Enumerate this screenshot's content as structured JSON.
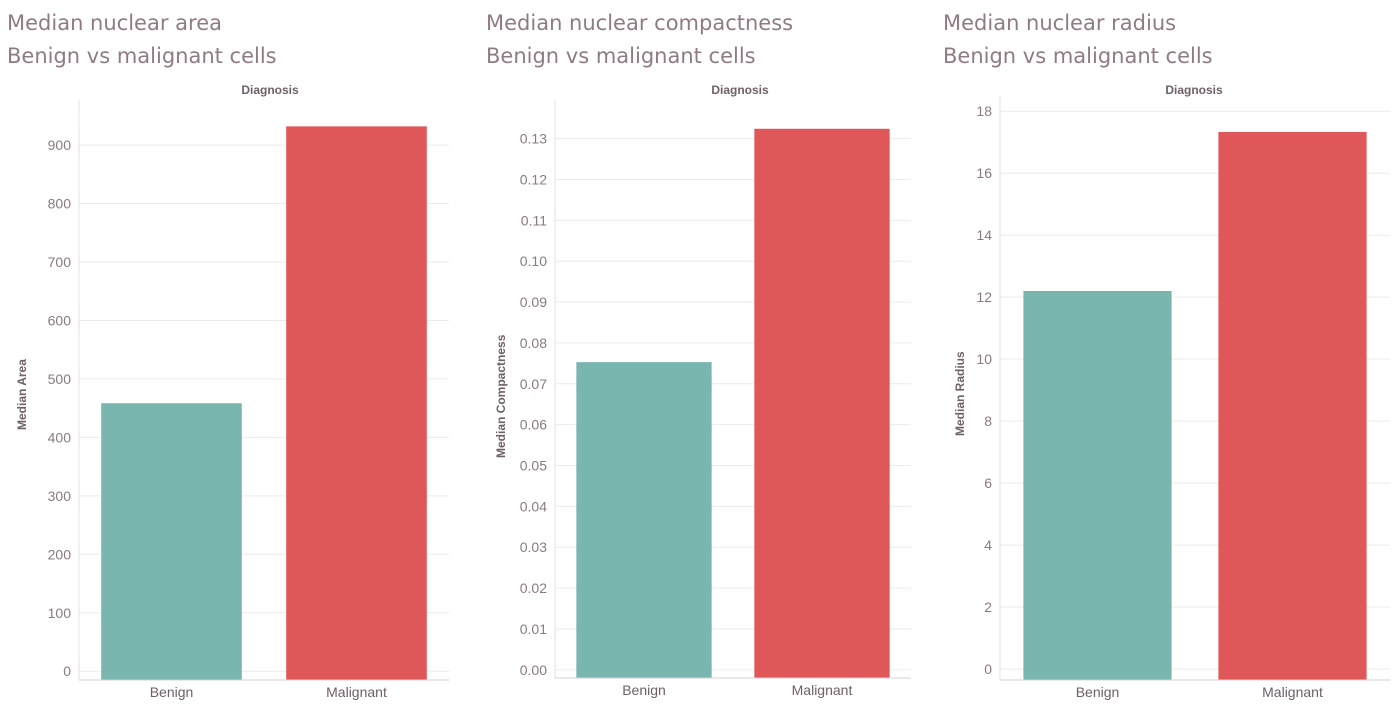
{
  "chart_data": [
    {
      "type": "bar",
      "title": "Median nuclear area",
      "subtitle": "Benign vs malignant cells",
      "column_header": "Diagnosis",
      "xlabel": "",
      "ylabel": "Median Area",
      "categories": [
        "Benign",
        "Malignant"
      ],
      "values": [
        458.4,
        932.0
      ],
      "colors": [
        "#79b6b0",
        "#e05759"
      ],
      "ylim": [
        -15,
        960
      ],
      "yticks": [
        0,
        100,
        200,
        300,
        400,
        500,
        600,
        700,
        800,
        900
      ],
      "ytick_labels": [
        "0",
        "100",
        "200",
        "300",
        "400",
        "500",
        "600",
        "700",
        "800",
        "900"
      ],
      "grid": true
    },
    {
      "type": "bar",
      "title": "Median nuclear compactness",
      "subtitle": "Benign vs malignant cells",
      "column_header": "Diagnosis",
      "xlabel": "",
      "ylabel": "Median Compactness",
      "categories": [
        "Benign",
        "Malignant"
      ],
      "values": [
        0.0753,
        0.1324
      ],
      "colors": [
        "#79b6b0",
        "#e05759"
      ],
      "ylim": [
        -0.002,
        0.137
      ],
      "yticks": [
        0,
        0.01,
        0.02,
        0.03,
        0.04,
        0.05,
        0.06,
        0.07,
        0.08,
        0.09,
        0.1,
        0.11,
        0.12,
        0.13
      ],
      "ytick_labels": [
        "0.00",
        "0.01",
        "0.02",
        "0.03",
        "0.04",
        "0.05",
        "0.06",
        "0.07",
        "0.08",
        "0.09",
        "0.10",
        "0.11",
        "0.12",
        "0.13"
      ],
      "grid": true
    },
    {
      "type": "bar",
      "title": "Median nuclear radius",
      "subtitle": "Benign vs malignant cells",
      "column_header": "Diagnosis",
      "xlabel": "",
      "ylabel": "Median Radius",
      "categories": [
        "Benign",
        "Malignant"
      ],
      "values": [
        12.2,
        17.33
      ],
      "colors": [
        "#79b6b0",
        "#e05759"
      ],
      "ylim": [
        -0.35,
        18.2
      ],
      "yticks": [
        0,
        2,
        4,
        6,
        8,
        10,
        12,
        14,
        16,
        18
      ],
      "ytick_labels": [
        "0",
        "2",
        "4",
        "6",
        "8",
        "10",
        "12",
        "14",
        "16",
        "18"
      ],
      "grid": true
    }
  ]
}
